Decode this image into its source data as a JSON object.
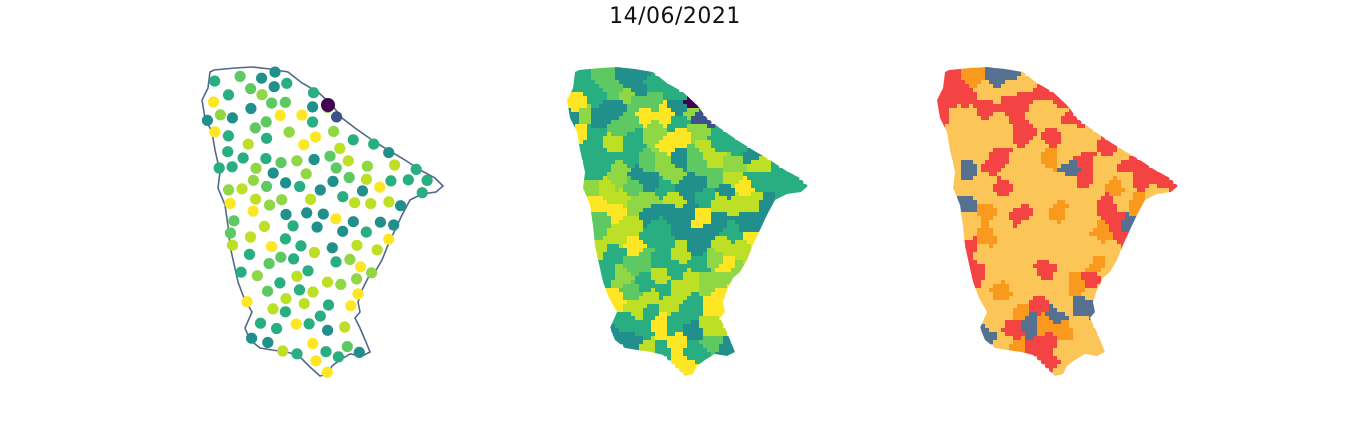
{
  "figure": {
    "title": "14/06/2021"
  },
  "colors": {
    "outline": "#4f6a8a",
    "viridis": [
      "#440154",
      "#3b528b",
      "#21908d",
      "#28ae80",
      "#5ec962",
      "#8fd744",
      "#bddf26",
      "#fde725"
    ],
    "categories": [
      "#fbc657",
      "#f99a1f",
      "#f44343",
      "#56718f"
    ]
  },
  "panels": [
    {
      "id": "points",
      "kind": "municipality-point-map"
    },
    {
      "id": "choropleth",
      "kind": "municipality-choropleth"
    },
    {
      "id": "classes",
      "kind": "categorical-choropleth"
    }
  ]
}
